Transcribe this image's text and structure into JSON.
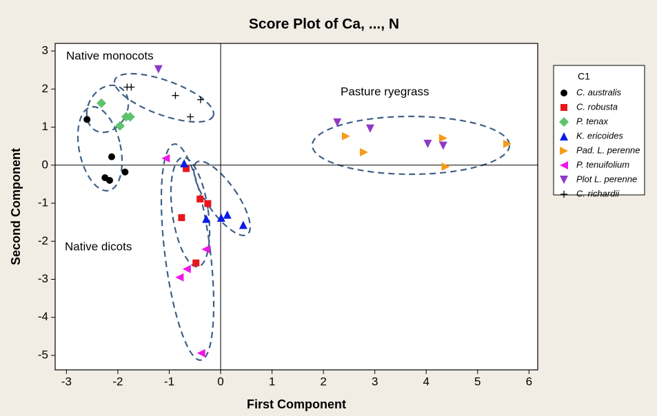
{
  "chart_data": {
    "type": "scatter",
    "title": "Score Plot of Ca, ..., N",
    "x_label": "First Component",
    "y_label": "Second Component",
    "xlim": [
      -3.22,
      6.17
    ],
    "ylim": [
      -5.38,
      3.2
    ],
    "xticks": [
      -3,
      -2,
      -1,
      0,
      1,
      2,
      3,
      4,
      5,
      6
    ],
    "yticks": [
      -5,
      -4,
      -3,
      -2,
      -1,
      0,
      1,
      2,
      3
    ],
    "reference_lines": {
      "x": [
        0
      ],
      "y": [
        0
      ]
    },
    "legend_title": "C1",
    "legend": "right",
    "annotations": [
      "Native monocots",
      "Pasture ryegrass",
      "Native dicots"
    ],
    "series": [
      {
        "name": "C. australis",
        "color": "#000000",
        "marker": "circle",
        "x": [
          -2.6,
          -2.12,
          -2.25,
          -2.16,
          -1.86
        ],
        "values": [
          1.2,
          0.22,
          -0.33,
          -0.4,
          -0.18
        ]
      },
      {
        "name": "C. robusta",
        "color": "#e8161b",
        "marker": "square",
        "x": [
          -0.67,
          -0.4,
          -0.25,
          -0.76,
          -0.48
        ],
        "values": [
          -0.09,
          -0.89,
          -1.01,
          -1.38,
          -2.57
        ]
      },
      {
        "name": "P. tenax",
        "color": "#5fc26d",
        "marker": "diamond",
        "x": [
          -2.32,
          -1.96,
          -1.84,
          -1.76
        ],
        "values": [
          1.63,
          1.03,
          1.27,
          1.27
        ]
      },
      {
        "name": "K. ericoides",
        "color": "#0a1de6",
        "marker": "triangle-up",
        "x": [
          -0.71,
          -0.28,
          0.01,
          0.13,
          0.44
        ],
        "values": [
          0.05,
          -1.41,
          -1.38,
          -1.3,
          -1.57
        ]
      },
      {
        "name": "Pad. L. perenne",
        "color": "#f59b16",
        "marker": "triangle-right",
        "x": [
          2.44,
          2.79,
          4.33,
          4.38,
          5.58
        ],
        "values": [
          0.76,
          0.34,
          0.71,
          -0.04,
          0.56
        ]
      },
      {
        "name": "P. tenuifolium",
        "color": "#ee17e6",
        "marker": "triangle-left",
        "x": [
          -1.07,
          -0.29,
          -0.66,
          -0.8,
          -0.38
        ],
        "values": [
          0.18,
          -2.21,
          -2.73,
          -2.95,
          -4.94
        ]
      },
      {
        "name": "Plot L. perenne",
        "color": "#8e3ac6",
        "marker": "triangle-down",
        "x": [
          -1.21,
          2.27,
          2.91,
          4.03,
          4.33
        ],
        "values": [
          2.52,
          1.12,
          0.96,
          0.56,
          0.51
        ]
      },
      {
        "name": "C. richardii",
        "color": "#000000",
        "marker": "plus",
        "x": [
          -1.82,
          -1.74,
          -0.88,
          -0.39,
          -0.59
        ],
        "values": [
          2.05,
          2.05,
          1.83,
          1.72,
          1.27
        ]
      }
    ]
  }
}
